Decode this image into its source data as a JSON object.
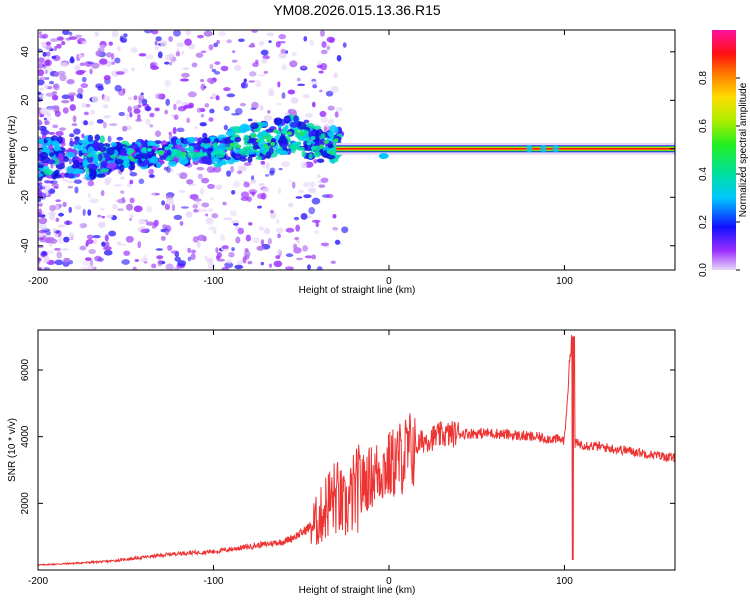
{
  "title": "YM08.2026.015.13.36.R15",
  "chart_data": [
    {
      "type": "heatmap",
      "name": "frequency-spectrogram",
      "xlabel": "Height of straight line (km)",
      "ylabel": "Frequency (Hz)",
      "xlim": [
        -200,
        163
      ],
      "ylim": [
        -50,
        49
      ],
      "xticks": [
        -200,
        -100,
        0,
        100
      ],
      "xtick_labels": [
        "-200",
        "-100",
        "0",
        "100"
      ],
      "yticks": [
        -40,
        -20,
        0,
        20,
        40
      ],
      "ytick_labels": [
        "-40",
        "-20",
        "0",
        "20",
        "40"
      ],
      "ridge": {
        "description_points_x": [
          -200,
          -150,
          -100,
          -75,
          -55,
          -40,
          -30,
          -20,
          0,
          163
        ],
        "description_points_y": [
          -4,
          -3,
          0,
          3,
          6,
          2,
          1,
          0,
          0,
          0
        ]
      },
      "colorbar": {
        "label": "Normalized spectral amplitude",
        "range": [
          0,
          1
        ],
        "ticks": [
          0.0,
          0.2,
          0.4,
          0.6,
          0.8
        ],
        "tick_labels": [
          "0.0",
          "0.2",
          "0.4",
          "0.6",
          "0.8"
        ]
      }
    },
    {
      "type": "line",
      "name": "snr-trace",
      "xlabel": "Height of straight line (km)",
      "ylabel": "SNR (10 * v/v)",
      "xlim": [
        -200,
        163
      ],
      "ylim": [
        0,
        7200
      ],
      "xticks": [
        -200,
        -100,
        0,
        100
      ],
      "xtick_labels": [
        "-200",
        "-100",
        "0",
        "100"
      ],
      "yticks": [
        2000,
        4000,
        6000
      ],
      "ytick_labels": [
        "2000",
        "4000",
        "6000"
      ],
      "color": "#ee3333",
      "series": [
        {
          "name": "SNR",
          "x": [
            -200,
            -180,
            -160,
            -140,
            -120,
            -100,
            -80,
            -60,
            -50,
            -40,
            -35,
            -30,
            -25,
            -20,
            -15,
            -10,
            -5,
            0,
            5,
            10,
            15,
            20,
            30,
            40,
            60,
            80,
            100,
            104,
            106,
            120,
            140,
            163
          ],
          "y": [
            150,
            200,
            260,
            380,
            500,
            550,
            700,
            850,
            1100,
            1500,
            2000,
            2200,
            1800,
            2300,
            2600,
            2800,
            3000,
            3100,
            3300,
            3500,
            3700,
            3900,
            4050,
            4100,
            4100,
            4000,
            3900,
            7000,
            3800,
            3700,
            3550,
            3350
          ]
        }
      ]
    }
  ]
}
